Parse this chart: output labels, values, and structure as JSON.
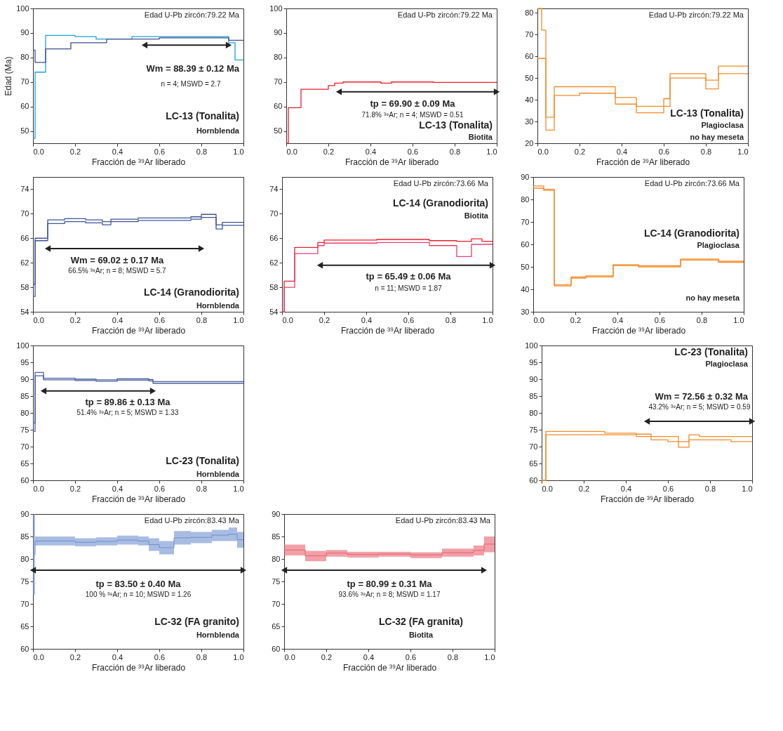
{
  "chart_data": [
    {
      "type": "step",
      "ylabel": "Edad (Ma)",
      "xlabel": "Fracción de ³⁹Ar liberado",
      "xlim": [
        0,
        1
      ],
      "ylim": [
        45,
        100
      ],
      "yticks": [
        50,
        60,
        70,
        80,
        90,
        100
      ],
      "xticks": [
        {
          "value": 0,
          "label": "0.0"
        },
        {
          "value": 0.2,
          "label": "0.2"
        },
        {
          "value": 0.4,
          "label": "0.4"
        },
        {
          "value": 0.6,
          "label": "0.6"
        },
        {
          "value": 0.8,
          "label": "0.8"
        },
        {
          "value": 1,
          "label": "1.0"
        }
      ],
      "grid": false,
      "series": [
        {
          "color": "#1fa0dc",
          "x": [
            0,
            0.01,
            0.06,
            0.2,
            0.3,
            0.47,
            0.93,
            0.96,
            1
          ],
          "values": [
            47,
            74,
            89,
            88.5,
            87.5,
            88.5,
            86,
            79,
            79
          ]
        },
        {
          "color": "#3d4f8f",
          "x": [
            0,
            0.01,
            0.06,
            0.18,
            0.35,
            0.6,
            0.93,
            1
          ],
          "values": [
            83,
            78,
            83.5,
            86,
            87.5,
            88,
            87,
            87
          ]
        },
        {
          "type": "line",
          "color": "#222222",
          "marker": "triangle",
          "x": [
            0.53,
            0.93
          ],
          "values": [
            85,
            85
          ]
        }
      ],
      "annotations": [
        "Wm = 88.39 ± 0.12 Ma",
        "Edad U-Pb zircón:79.22 Ma",
        "n = 4; MSWD = 2.7",
        "LC-13 (Tonalita)",
        "Hornblenda"
      ]
    },
    {
      "type": "step",
      "xlabel": "Fracción de ³⁹Ar liberado",
      "xlim": [
        0,
        1
      ],
      "ylim": [
        45,
        100
      ],
      "yticks": [
        50,
        60,
        70,
        80,
        90,
        100
      ],
      "xticks": [
        {
          "value": 0,
          "label": "0.0"
        },
        {
          "value": 0.2,
          "label": "0.2"
        },
        {
          "value": 0.4,
          "label": "0.4"
        },
        {
          "value": 0.6,
          "label": "0.6"
        },
        {
          "value": 0.8,
          "label": "0.8"
        },
        {
          "value": 1,
          "label": "1.0"
        }
      ],
      "grid": false,
      "series": [
        {
          "color": "#e8202a",
          "x": [
            0,
            0.01,
            0.07,
            0.2,
            0.23,
            0.27,
            0.45,
            0.5,
            0.7,
            1
          ],
          "values": [
            45,
            59.5,
            67,
            68.5,
            69.5,
            70,
            69.5,
            70,
            69.8,
            69.8
          ]
        },
        {
          "type": "line",
          "color": "#222222",
          "marker": "triangle",
          "x": [
            0.25,
            1
          ],
          "values": [
            66,
            66
          ]
        }
      ],
      "annotations": [
        "tp = 69.90 ± 0.09 Ma",
        "Edad U-Pb zircón:79.22 Ma",
        "71.8% ³⁹Ar; n = 4; MSWD = 0.51",
        "LC-13 (Tonalita)",
        "Biotita"
      ]
    },
    {
      "type": "step",
      "xlabel": "Fracción de ³⁹Ar liberado",
      "xlim": [
        0,
        1
      ],
      "ylim": [
        20,
        82
      ],
      "yticks": [
        20,
        30,
        40,
        50,
        60,
        70,
        80
      ],
      "xticks": [
        {
          "value": 0,
          "label": "0.0"
        },
        {
          "value": 0.2,
          "label": "0.2"
        },
        {
          "value": 0.4,
          "label": "0.4"
        },
        {
          "value": 0.6,
          "label": "0.6"
        },
        {
          "value": 0.8,
          "label": "0.8"
        },
        {
          "value": 1,
          "label": "1.0"
        }
      ],
      "grid": false,
      "series": [
        {
          "color": "#f28c28",
          "x": [
            0,
            0.02,
            0.04,
            0.08,
            0.2,
            0.37,
            0.47,
            0.6,
            0.63,
            0.8,
            0.86,
            1
          ],
          "values": [
            82,
            72,
            32,
            46,
            46,
            41,
            37,
            40.5,
            52,
            49,
            55.5,
            55.5
          ]
        },
        {
          "color": "#f28c28",
          "x": [
            0,
            0.02,
            0.04,
            0.08,
            0.2,
            0.37,
            0.47,
            0.6,
            0.63,
            0.8,
            0.86,
            1
          ],
          "values": [
            59,
            59,
            26,
            42,
            43,
            38,
            34,
            37,
            50,
            45,
            52,
            52
          ]
        }
      ],
      "annotations": [
        "Edad U-Pb zircón:79.22 Ma",
        "LC-13 (Tonalita)",
        "Plagioclasa",
        "no hay meseta"
      ]
    },
    {
      "type": "step",
      "xlabel": "Fracción de ³⁹Ar liberado",
      "xlim": [
        0,
        1
      ],
      "ylim": [
        54,
        76
      ],
      "yticks": [
        54,
        58,
        62,
        66,
        70,
        74
      ],
      "xticks": [
        {
          "value": 0,
          "label": "0.0"
        },
        {
          "value": 0.2,
          "label": "0.2"
        },
        {
          "value": 0.4,
          "label": "0.4"
        },
        {
          "value": 0.6,
          "label": "0.6"
        },
        {
          "value": 0.8,
          "label": "0.8"
        },
        {
          "value": 1,
          "label": "1.0"
        }
      ],
      "grid": false,
      "series": [
        {
          "color": "#3e5597",
          "x": [
            0,
            0.01,
            0.07,
            0.15,
            0.25,
            0.33,
            0.37,
            0.5,
            0.75,
            0.8,
            0.87,
            0.9,
            1
          ],
          "values": [
            58.5,
            66,
            69,
            69.2,
            69,
            68.7,
            69.1,
            69.3,
            69.5,
            69.9,
            68.2,
            68.6,
            68.6
          ]
        },
        {
          "color": "#3e5597",
          "x": [
            0,
            0.01,
            0.07,
            0.15,
            0.25,
            0.33,
            0.37,
            0.5,
            0.75,
            0.8,
            0.87,
            0.9,
            1
          ],
          "values": [
            56.5,
            65.6,
            68.4,
            68.7,
            68.5,
            68.2,
            68.7,
            68.9,
            69.1,
            69.4,
            67.5,
            68.1,
            68.1
          ]
        },
        {
          "type": "line",
          "color": "#222222",
          "marker": "triangle",
          "x": [
            0.07,
            0.8
          ],
          "values": [
            64.3,
            64.3
          ]
        }
      ],
      "annotations": [
        "Wm = 69.02 ± 0.17 Ma",
        "66.5% ³⁹Ar; n = 8; MSWD = 5.7",
        "LC-14 (Granodiorita)",
        "Hornblenda"
      ]
    },
    {
      "type": "step",
      "xlabel": "Fracción de ³⁹Ar liberado",
      "xlim": [
        0,
        1
      ],
      "ylim": [
        54,
        76
      ],
      "yticks": [
        54,
        58,
        62,
        66,
        70,
        74
      ],
      "xticks": [
        {
          "value": 0,
          "label": "0.0"
        },
        {
          "value": 0.2,
          "label": "0.2"
        },
        {
          "value": 0.4,
          "label": "0.4"
        },
        {
          "value": 0.6,
          "label": "0.6"
        },
        {
          "value": 0.8,
          "label": "0.8"
        },
        {
          "value": 1,
          "label": "1.0"
        }
      ],
      "grid": false,
      "series": [
        {
          "color": "#e8202a",
          "x": [
            0,
            0.01,
            0.06,
            0.17,
            0.2,
            0.45,
            0.7,
            0.83,
            0.9,
            0.95,
            1
          ],
          "values": [
            54,
            59,
            64.5,
            65.3,
            65.7,
            65.8,
            65.6,
            65.5,
            65.9,
            65.5,
            65.5
          ]
        },
        {
          "color": "#e8406a",
          "x": [
            0,
            0.01,
            0.06,
            0.17,
            0.2,
            0.45,
            0.7,
            0.83,
            0.9,
            0.95,
            1
          ],
          "values": [
            54,
            58,
            63.5,
            64.8,
            65.2,
            65.3,
            64.8,
            63,
            65,
            65,
            65
          ]
        },
        {
          "type": "line",
          "color": "#222222",
          "marker": "triangle",
          "x": [
            0.18,
            1
          ],
          "values": [
            61.6,
            61.6
          ]
        }
      ],
      "annotations": [
        "tp = 65.49 ± 0.06 Ma",
        "Edad U-Pb zircón:73.66 Ma",
        "LC-14 (Granodiorita)",
        "Biotita",
        "n = 11; MSWD = 1.87"
      ]
    },
    {
      "type": "step",
      "xlabel": "Fracción de ³⁹Ar liberado",
      "xlim": [
        0,
        1
      ],
      "ylim": [
        30,
        90
      ],
      "yticks": [
        30,
        40,
        50,
        60,
        70,
        80,
        90
      ],
      "xticks": [
        {
          "value": 0,
          "label": "0.0"
        },
        {
          "value": 0.2,
          "label": "0.2"
        },
        {
          "value": 0.4,
          "label": "0.4"
        },
        {
          "value": 0.6,
          "label": "0.6"
        },
        {
          "value": 0.8,
          "label": "0.8"
        },
        {
          "value": 1,
          "label": "1.0"
        }
      ],
      "grid": false,
      "series": [
        {
          "color": "#f28c28",
          "x": [
            0,
            0.05,
            0.1,
            0.18,
            0.25,
            0.38,
            0.5,
            0.7,
            0.88,
            1
          ],
          "values": [
            86,
            84.5,
            42,
            45.5,
            46,
            51,
            50.5,
            53.5,
            52.5,
            52.5
          ]
        },
        {
          "color": "#f28c28",
          "x": [
            0,
            0.05,
            0.1,
            0.18,
            0.25,
            0.38,
            0.5,
            0.7,
            0.88,
            1
          ],
          "values": [
            85,
            84,
            41.5,
            45,
            45.5,
            50.5,
            50,
            53,
            52,
            52
          ]
        }
      ],
      "annotations": [
        "Edad U-Pb zircón:73.66 Ma",
        "LC-14 (Granodiorita)",
        "Plagioclasa",
        "no hay meseta"
      ]
    },
    {
      "type": "step",
      "xlabel": "Fracción de ³⁹Ar liberado",
      "xlim": [
        0,
        1
      ],
      "ylim": [
        60,
        100
      ],
      "yticks": [
        60,
        65,
        70,
        75,
        80,
        85,
        90,
        95,
        100
      ],
      "xticks": [
        {
          "value": 0,
          "label": "0.0"
        },
        {
          "value": 0.2,
          "label": "0.2"
        },
        {
          "value": 0.4,
          "label": "0.4"
        },
        {
          "value": 0.6,
          "label": "0.6"
        },
        {
          "value": 0.8,
          "label": "0.8"
        },
        {
          "value": 1,
          "label": "1.0"
        }
      ],
      "grid": false,
      "series": [
        {
          "color": "#4a5fa0",
          "x": [
            0,
            0.01,
            0.05,
            0.2,
            0.3,
            0.4,
            0.55,
            0.57,
            1
          ],
          "values": [
            77,
            92,
            90.3,
            90,
            89.8,
            90.1,
            89.9,
            89.3,
            89.3
          ]
        },
        {
          "color": "#4a5fa0",
          "x": [
            0,
            0.01,
            0.05,
            0.2,
            0.3,
            0.4,
            0.55,
            0.57,
            1
          ],
          "values": [
            74.5,
            91,
            89.8,
            89.6,
            89.4,
            89.7,
            89.5,
            88.8,
            88.8
          ]
        },
        {
          "type": "line",
          "color": "#222222",
          "marker": "triangle",
          "x": [
            0.05,
            0.57
          ],
          "values": [
            86.5,
            86.5
          ]
        }
      ],
      "annotations": [
        "tp = 89.86 ± 0.13 Ma",
        "51.4% ³⁹Ar; n = 5; MSWD = 1.33",
        "LC-23 (Tonalita)",
        "Hornblenda"
      ]
    },
    {
      "type": "step",
      "xlabel": "Fracción de ³⁹Ar liberado",
      "xlim": [
        0,
        1
      ],
      "ylim": [
        60,
        100
      ],
      "yticks": [
        60,
        65,
        70,
        75,
        80,
        85,
        90,
        95,
        100
      ],
      "xticks": [
        {
          "value": 0,
          "label": "0.0"
        },
        {
          "value": 0.2,
          "label": "0.2"
        },
        {
          "value": 0.4,
          "label": "0.4"
        },
        {
          "value": 0.6,
          "label": "0.6"
        },
        {
          "value": 0.8,
          "label": "0.8"
        },
        {
          "value": 1,
          "label": "1.0"
        }
      ],
      "grid": false,
      "series": [
        {
          "color": "#f28c28",
          "x": [
            0,
            0.02,
            0.3,
            0.45,
            0.52,
            0.6,
            0.65,
            0.7,
            0.75,
            0.9,
            1
          ],
          "values": [
            60,
            74.5,
            74,
            73.7,
            73,
            73,
            71.5,
            73.5,
            73,
            73,
            73
          ]
        },
        {
          "color": "#f28c28",
          "x": [
            0,
            0.02,
            0.3,
            0.45,
            0.52,
            0.6,
            0.65,
            0.7,
            0.75,
            0.9,
            1
          ],
          "values": [
            60,
            73.5,
            73.5,
            73,
            72,
            71.5,
            69.8,
            72,
            72,
            71.5,
            71.5
          ]
        },
        {
          "type": "line",
          "color": "#222222",
          "marker": "triangle",
          "x": [
            0.5,
            1
          ],
          "values": [
            77.5,
            77.5
          ]
        }
      ],
      "annotations": [
        "Wm = 72.56 ± 0.32 Ma",
        "LC-23 (Tonalita)",
        "Plagioclasa",
        "43.2% ³⁹Ar; n = 5; MSWD = 0.59"
      ]
    },
    {
      "type": "step",
      "xlabel": "Fracción de ³⁹Ar liberado",
      "xlim": [
        0,
        1
      ],
      "ylim": [
        60,
        90
      ],
      "yticks": [
        60,
        65,
        70,
        75,
        80,
        85,
        90
      ],
      "xticks": [
        {
          "value": 0,
          "label": "0.0"
        },
        {
          "value": 0.2,
          "label": "0.2"
        },
        {
          "value": 0.4,
          "label": "0.4"
        },
        {
          "value": 0.6,
          "label": "0.6"
        },
        {
          "value": 0.8,
          "label": "0.8"
        },
        {
          "value": 1,
          "label": "1.0"
        }
      ],
      "grid": false,
      "series": [
        {
          "color": "#6f8fce",
          "x": [
            0,
            0.01,
            0.2,
            0.3,
            0.4,
            0.5,
            0.55,
            0.6,
            0.67,
            0.75,
            0.85,
            0.93,
            0.97,
            1
          ],
          "values": [
            81,
            84,
            83.7,
            83.9,
            84.2,
            84,
            83.2,
            82.5,
            84.7,
            84.8,
            85.3,
            85.5,
            84.3,
            84.3
          ],
          "lower": [
            72,
            83,
            82.8,
            83,
            83.2,
            83,
            81.8,
            81,
            83.2,
            83.5,
            84,
            84,
            82.5,
            82.5
          ],
          "upper": [
            90,
            85,
            84.6,
            84.8,
            85.2,
            85,
            84.6,
            84,
            86.2,
            86,
            86.5,
            87,
            86,
            86
          ]
        },
        {
          "type": "line",
          "color": "#222222",
          "marker": "triangle",
          "x": [
            0,
            1
          ],
          "values": [
            77.5,
            77.5
          ]
        }
      ],
      "annotations": [
        "tp = 83.50 ± 0.40 Ma",
        "Edad U-Pb zircón:83.43 Ma",
        "100 % ³⁹Ar; n = 10; MSWD = 1.26",
        "LC-32 (FA granito)",
        "Hornblenda"
      ]
    },
    {
      "type": "step",
      "xlabel": "Fracción de ³⁹Ar liberado",
      "xlim": [
        0,
        1
      ],
      "ylim": [
        60,
        90
      ],
      "yticks": [
        60,
        65,
        70,
        75,
        80,
        85,
        90
      ],
      "xticks": [
        {
          "value": 0,
          "label": "0.0"
        },
        {
          "value": 0.2,
          "label": "0.2"
        },
        {
          "value": 0.4,
          "label": "0.4"
        },
        {
          "value": 0.6,
          "label": "0.6"
        },
        {
          "value": 0.8,
          "label": "0.8"
        },
        {
          "value": 1,
          "label": "1.0"
        }
      ],
      "grid": false,
      "series": [
        {
          "color": "#e8606e",
          "x": [
            0,
            0.1,
            0.2,
            0.3,
            0.45,
            0.6,
            0.75,
            0.9,
            0.95,
            1
          ],
          "values": [
            82,
            80.7,
            81.3,
            81,
            81.1,
            80.9,
            81.4,
            81.9,
            83.3,
            83.3
          ],
          "lower": [
            80.8,
            79.5,
            80.5,
            80.3,
            80.5,
            80.2,
            80.5,
            80.8,
            81.5,
            81.5
          ],
          "upper": [
            83.2,
            81.8,
            82,
            81.6,
            81.6,
            81.5,
            82.3,
            83,
            85,
            85
          ]
        },
        {
          "type": "line",
          "color": "#222222",
          "marker": "triangle",
          "x": [
            0,
            0.95
          ],
          "values": [
            77.5,
            77.5
          ]
        }
      ],
      "annotations": [
        "tp = 80.99 ± 0.31 Ma",
        "Edad U-Pb zircón:83.43 Ma",
        "93.6% ³⁹Ar; n = 8; MSWD = 1.17",
        "LC-32 (FA granita)",
        "Biotita"
      ]
    }
  ]
}
